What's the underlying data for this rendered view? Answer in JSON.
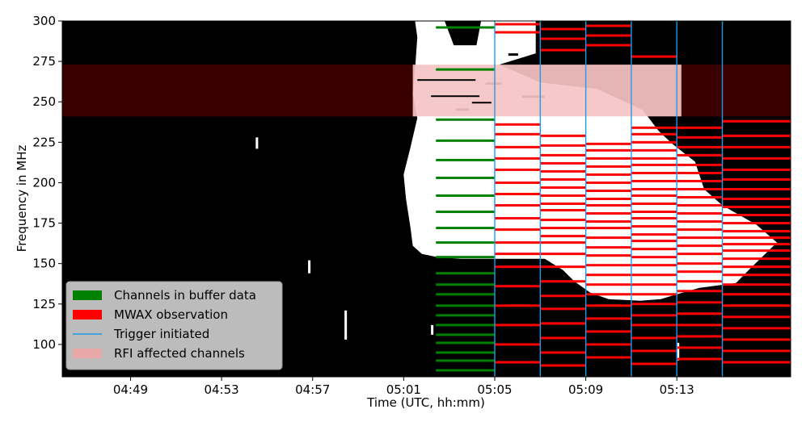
{
  "chart_data": {
    "type": "heatmap",
    "title": "",
    "xlabel": "Time (UTC, hh:mm)",
    "ylabel": "Frequency in MHz",
    "x_range": [
      "04:46:00",
      "05:18:00"
    ],
    "ylim": [
      80,
      300
    ],
    "x_ticks": [
      "04:49",
      "04:53",
      "04:57",
      "05:01",
      "05:05",
      "05:09",
      "05:13"
    ],
    "y_ticks": [
      100,
      125,
      150,
      175,
      200,
      225,
      250,
      275,
      300
    ],
    "grid": false,
    "legend_position": "lower-left",
    "legend": [
      {
        "label": "Channels in buffer data",
        "color": "#008000",
        "kind": "patch"
      },
      {
        "label": "MWAX observation",
        "color": "#ff0000",
        "kind": "patch"
      },
      {
        "label": "Trigger initiated",
        "color": "#1f9be6",
        "kind": "line"
      },
      {
        "label": "RFI affected channels",
        "color": "#e8a8a8",
        "kind": "patch"
      }
    ],
    "rfi_band_mhz": [
      241,
      273
    ],
    "trigger_times": [
      "05:05",
      "05:07",
      "05:09",
      "05:11",
      "05:13",
      "05:15"
    ],
    "buffer_data": {
      "start": "05:02:25",
      "end": "05:05",
      "channels_mhz": [
        84,
        90,
        95,
        101,
        106,
        112,
        118,
        124,
        131,
        137,
        144,
        154,
        163,
        172,
        182,
        192,
        203,
        214,
        226,
        239,
        270,
        296
      ]
    },
    "observations": [
      {
        "start": "05:05",
        "end": "05:07",
        "channels_mhz": [
          89,
          100,
          112,
          124,
          136,
          148,
          156,
          163,
          171,
          178,
          186,
          193,
          200,
          208,
          215,
          222,
          230,
          236,
          293,
          298
        ]
      },
      {
        "start": "05:07",
        "end": "05:09",
        "channels_mhz": [
          87,
          95,
          104,
          113,
          122,
          130,
          139,
          148,
          156,
          163,
          167,
          172,
          177,
          183,
          187,
          192,
          197,
          202,
          207,
          212,
          217,
          223,
          229,
          282,
          289,
          295
        ]
      },
      {
        "start": "05:09",
        "end": "05:11",
        "channels_mhz": [
          92,
          100,
          108,
          116,
          124,
          131,
          137,
          143,
          149,
          155,
          160,
          166,
          172,
          176,
          181,
          186,
          190,
          195,
          200,
          205,
          210,
          215,
          220,
          224,
          285,
          291,
          297
        ]
      },
      {
        "start": "05:11",
        "end": "05:13",
        "channels_mhz": [
          88,
          96,
          104,
          112,
          118,
          125,
          131,
          137,
          143,
          149,
          154,
          159,
          164,
          168,
          173,
          178,
          182,
          187,
          192,
          196,
          201,
          206,
          211,
          215,
          220,
          225,
          230,
          234,
          278
        ]
      },
      {
        "start": "05:13",
        "end": "05:15",
        "channels_mhz": [
          91,
          98,
          105,
          112,
          119,
          126,
          133,
          139,
          145,
          150,
          156,
          161,
          166,
          171,
          176,
          181,
          186,
          191,
          196,
          201,
          206,
          211,
          217,
          222,
          228,
          234
        ]
      },
      {
        "start": "05:15",
        "end": "05:18",
        "channels_mhz": [
          89,
          96,
          103,
          110,
          117,
          124,
          131,
          137,
          143,
          148,
          153,
          158,
          162,
          166,
          170,
          175,
          180,
          185,
          190,
          196,
          202,
          208,
          215,
          222,
          229,
          238
        ]
      }
    ]
  }
}
